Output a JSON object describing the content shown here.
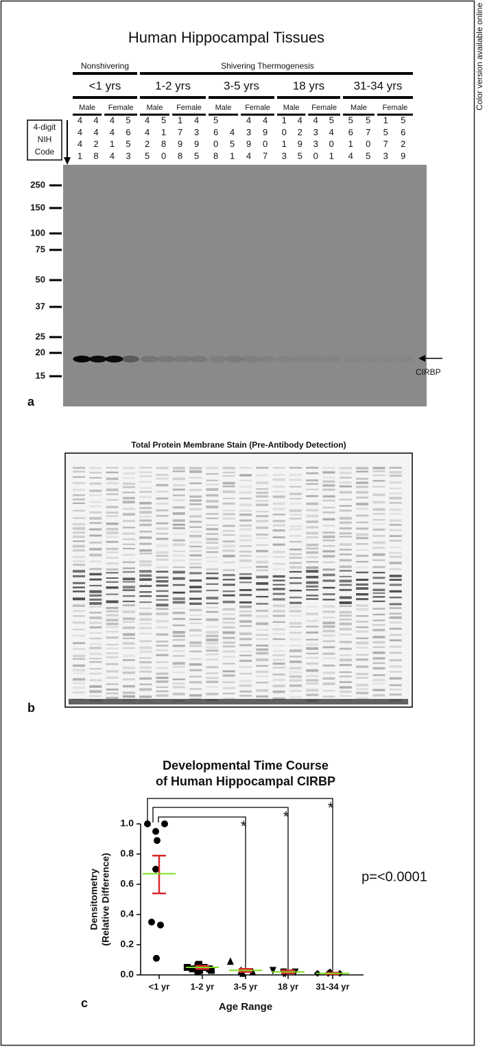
{
  "side_note": "Color version available online",
  "panel_a": {
    "label": "a",
    "title": "Human Hippocampal Tissues",
    "conditions": [
      "Nonshivering",
      "Shivering Thermogenesis"
    ],
    "age_groups": [
      "<1 yrs",
      "1-2 yrs",
      "3-5 yrs",
      "18 yrs",
      "31-34 yrs"
    ],
    "sexes": [
      "Male",
      "Female"
    ],
    "code_label": [
      "4-digit",
      "NIH",
      "Code"
    ],
    "codes": [
      "4441",
      "4428",
      "4414",
      "5653",
      "4425",
      "5180",
      "1798",
      "4395",
      "5608",
      "451",
      "4394",
      "4907",
      "1013",
      "4295",
      "4330",
      "5401",
      "5614",
      "5705",
      "1573",
      "5629"
    ],
    "markers": [
      250,
      150,
      100,
      75,
      50,
      37,
      25,
      20,
      15
    ],
    "band_label": "CIRBP"
  },
  "panel_b": {
    "label": "b",
    "title": "Total Protein Membrane Stain (Pre-Antibody Detection)"
  },
  "panel_c_label": "c",
  "chart_data": {
    "type": "scatter",
    "title": [
      "Developmental Time Course",
      "of Human Hippocampal CIRBP"
    ],
    "ylabel": [
      "Densitometry",
      "(Relative Difference)"
    ],
    "xlabel": "Age Range",
    "categories": [
      "<1 yr",
      "1-2 yr",
      "3-5 yr",
      "18 yr",
      "31-34 yr"
    ],
    "markers": [
      "circle",
      "square",
      "triangle-up",
      "triangle-down",
      "diamond"
    ],
    "values": [
      [
        1.0,
        0.95,
        1.0,
        0.89,
        0.7,
        0.35,
        0.33,
        0.11
      ],
      [
        0.05,
        0.06,
        0.04,
        0.03,
        0.02,
        0.04,
        0.05,
        0.07,
        0.03
      ],
      [
        0.09,
        0.03,
        0.02,
        0.01,
        0.02
      ],
      [
        0.03,
        0.02,
        0.02,
        0.01,
        0.01
      ],
      [
        0.01,
        0.01,
        0.01,
        0.02,
        0.01
      ]
    ],
    "means": [
      0.67,
      0.05,
      0.03,
      0.02,
      0.01
    ],
    "error_bars": [
      [
        0.54,
        0.79
      ],
      [
        0.04,
        0.06
      ],
      [
        0.02,
        0.04
      ],
      [
        0.01,
        0.03
      ],
      [
        0.005,
        0.015
      ]
    ],
    "mean_color": "#7ddc1f",
    "error_color": "#d9262b",
    "point_color": "#000000",
    "ylim": [
      0,
      1
    ],
    "yticks": [
      {
        "value": 0,
        "label": "0.0"
      },
      {
        "value": 0.2,
        "label": "0.2"
      },
      {
        "value": 0.4,
        "label": "0.4"
      },
      {
        "value": 0.6,
        "label": "0.6"
      },
      {
        "value": 0.8,
        "label": "0.8"
      },
      {
        "value": 1,
        "label": "1.0"
      }
    ],
    "significance_labels": [
      "*",
      "*",
      "*"
    ],
    "annotation": "p=<0.0001"
  }
}
